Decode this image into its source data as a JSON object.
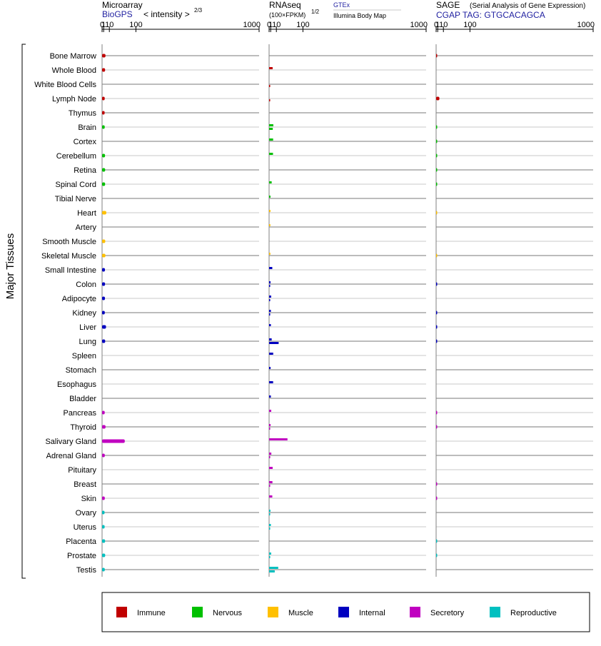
{
  "chart_data": {
    "type": "bar",
    "y_axis_title": "Major Tissues",
    "categories": [
      "Bone Marrow",
      "Whole Blood",
      "White Blood Cells",
      "Lymph Node",
      "Thymus",
      "Brain",
      "Cortex",
      "Cerebellum",
      "Retina",
      "Spinal Cord",
      "Tibial Nerve",
      "Heart",
      "Artery",
      "Smooth Muscle",
      "Skeletal Muscle",
      "Small Intestine",
      "Colon",
      "Adipocyte",
      "Kidney",
      "Liver",
      "Lung",
      "Spleen",
      "Stomach",
      "Esophagus",
      "Bladder",
      "Pancreas",
      "Thyroid",
      "Salivary Gland",
      "Adrenal Gland",
      "Pituitary",
      "Breast",
      "Skin",
      "Ovary",
      "Uterus",
      "Placenta",
      "Prostate",
      "Testis"
    ],
    "groups": [
      "immune",
      "immune",
      "immune",
      "immune",
      "immune",
      "nervous",
      "nervous",
      "nervous",
      "nervous",
      "nervous",
      "nervous",
      "muscle",
      "muscle",
      "muscle",
      "muscle",
      "internal",
      "internal",
      "internal",
      "internal",
      "internal",
      "internal",
      "internal",
      "internal",
      "internal",
      "internal",
      "secretory",
      "secretory",
      "secretory",
      "secretory",
      "secretory",
      "secretory",
      "secretory",
      "reproductive",
      "reproductive",
      "reproductive",
      "reproductive",
      "reproductive"
    ],
    "colors": {
      "immune": "#c00000",
      "nervous": "#00c000",
      "muscle": "#ffc000",
      "internal": "#0000c0",
      "secretory": "#c000c0",
      "reproductive": "#00c0c0"
    },
    "panels": [
      {
        "title": "Microarray",
        "subtitle": "BioGPS",
        "axis_label": "< intensity >",
        "axis_exponent": "2/3",
        "ticks": [
          "0",
          "1",
          "10",
          "100",
          "1000"
        ],
        "xlim": [
          0,
          1000
        ],
        "series": [
          {
            "values": [
              3.2,
              2.7,
              null,
              2.2,
              2.1,
              2.2,
              null,
              2.6,
              2.8,
              2.7,
              null,
              4.4,
              null,
              2.9,
              3.1,
              2.5,
              2.6,
              2.5,
              2.3,
              4.0,
              2.8,
              null,
              null,
              null,
              null,
              2.2,
              3.3,
              55,
              2.3,
              null,
              null,
              2.3,
              2.0,
              2.1,
              2.7,
              2.8,
              2.3
            ]
          }
        ]
      },
      {
        "title": "RNAseq",
        "subtitle": "(100×FPKM)",
        "axis_exponent": "1/2",
        "sources": [
          "GTEx",
          "Illumina Body Map"
        ],
        "ticks": [
          "0",
          "1",
          "10",
          "100",
          "1000"
        ],
        "xlim": [
          0,
          1000
        ],
        "series": [
          {
            "name": "GTEx",
            "values": [
              null,
              3.4,
              null,
              null,
              null,
              4.4,
              4.1,
              3.9,
              null,
              2.1,
              0.8,
              0.8,
              0.7,
              null,
              0.7,
              2.9,
              0.9,
              1.5,
              1.2,
              1.2,
              2.1,
              4.2,
              0.9,
              4.1,
              1.2,
              1.6,
              0.9,
              40,
              1.7,
              3.4,
              3.1,
              2.9,
              0.8,
              1.2,
              null,
              1.5,
              14
            ]
          },
          {
            "name": "Illumina Body Map",
            "values": [
              null,
              null,
              0.02,
              0.03,
              null,
              3.6,
              null,
              null,
              null,
              null,
              null,
              null,
              null,
              null,
              null,
              null,
              0.03,
              0.03,
              0.03,
              null,
              15,
              null,
              null,
              null,
              null,
              null,
              0.03,
              null,
              0.03,
              null,
              0.03,
              null,
              0.03,
              0.03,
              null,
              0.03,
              6.8
            ]
          }
        ]
      },
      {
        "title": "SAGE",
        "title_note": "(Serial Analysis of Gene Expression)",
        "subtitle": "CGAP TAG: GTGCACAGCA",
        "ticks": [
          "0",
          "1",
          "10",
          "100",
          "1000"
        ],
        "xlim": [
          0,
          1000
        ],
        "series": [
          {
            "values": [
              0.02,
              null,
              null,
              3.0,
              null,
              0.02,
              0.02,
              0.02,
              0.02,
              0.02,
              null,
              0.01,
              null,
              null,
              0.01,
              null,
              0.02,
              null,
              0.02,
              0.02,
              0.02,
              null,
              null,
              null,
              null,
              0.02,
              0.02,
              null,
              null,
              null,
              0.02,
              0.15,
              null,
              null,
              0.02,
              0.02,
              null
            ]
          }
        ]
      }
    ],
    "legend": [
      {
        "key": "immune",
        "label": "Immune"
      },
      {
        "key": "nervous",
        "label": "Nervous"
      },
      {
        "key": "muscle",
        "label": "Muscle"
      },
      {
        "key": "internal",
        "label": "Internal"
      },
      {
        "key": "secretory",
        "label": "Secretory"
      },
      {
        "key": "reproductive",
        "label": "Reproductive"
      }
    ]
  }
}
